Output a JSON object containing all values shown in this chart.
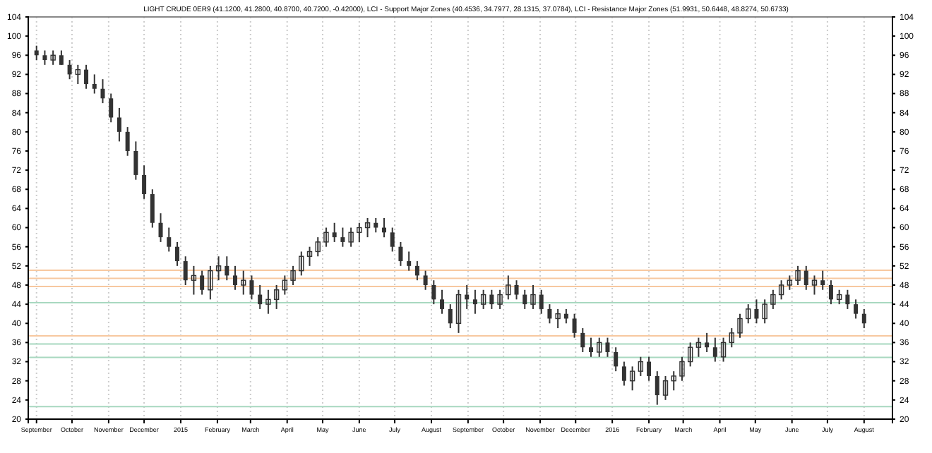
{
  "chart_data": {
    "type": "candlestick",
    "title": "LIGHT CRUDE 0ER9 (41.1200, 41.2800, 40.8700, 40.7200, -0.42000), LCI - Support Major Zones (40.4536, 34.7977, 28.1315, 37.0784), LCI - Resistance Major Zones (51.9931, 50.6448, 48.8274, 50.6733)",
    "color": "#333333",
    "x": [
      "2014-09-01",
      "2014-09-08",
      "2014-09-15",
      "2014-09-22",
      "2014-09-29",
      "2014-10-06",
      "2014-10-13",
      "2014-10-20",
      "2014-10-27",
      "2014-11-03",
      "2014-11-10",
      "2014-11-17",
      "2014-11-24",
      "2014-12-01",
      "2014-12-08",
      "2014-12-15",
      "2014-12-22",
      "2014-12-29",
      "2015-01-05",
      "2015-01-12",
      "2015-01-19",
      "2015-01-26",
      "2015-02-02",
      "2015-02-09",
      "2015-02-16",
      "2015-02-23",
      "2015-03-02",
      "2015-03-09",
      "2015-03-16",
      "2015-03-23",
      "2015-03-30",
      "2015-04-06",
      "2015-04-13",
      "2015-04-20",
      "2015-04-27",
      "2015-05-04",
      "2015-05-11",
      "2015-05-18",
      "2015-05-25",
      "2015-06-01",
      "2015-06-08",
      "2015-06-15",
      "2015-06-22",
      "2015-06-29",
      "2015-07-06",
      "2015-07-13",
      "2015-07-20",
      "2015-07-27",
      "2015-08-03",
      "2015-08-10",
      "2015-08-17",
      "2015-08-24",
      "2015-08-31",
      "2015-09-07",
      "2015-09-14",
      "2015-09-21",
      "2015-09-28",
      "2015-10-05",
      "2015-10-12",
      "2015-10-19",
      "2015-10-26",
      "2015-11-02",
      "2015-11-09",
      "2015-11-16",
      "2015-11-23",
      "2015-11-30",
      "2015-12-07",
      "2015-12-14",
      "2015-12-21",
      "2015-12-28",
      "2016-01-04",
      "2016-01-11",
      "2016-01-18",
      "2016-01-25",
      "2016-02-01",
      "2016-02-08",
      "2016-02-15",
      "2016-02-22",
      "2016-02-29",
      "2016-03-07",
      "2016-03-14",
      "2016-03-21",
      "2016-03-28",
      "2016-04-04",
      "2016-04-11",
      "2016-04-18",
      "2016-04-25",
      "2016-05-02",
      "2016-05-09",
      "2016-05-16",
      "2016-05-23",
      "2016-05-30",
      "2016-06-06",
      "2016-06-13",
      "2016-06-20",
      "2016-06-27",
      "2016-07-04",
      "2016-07-11",
      "2016-07-18",
      "2016-07-25",
      "2016-08-01"
    ],
    "ohlc": [
      [
        97,
        98,
        95,
        96
      ],
      [
        96,
        97,
        94,
        95
      ],
      [
        95,
        97,
        94,
        96
      ],
      [
        96,
        97,
        94,
        94
      ],
      [
        94,
        95,
        91,
        92
      ],
      [
        92,
        94,
        90,
        93
      ],
      [
        93,
        94,
        89,
        90
      ],
      [
        90,
        92,
        88,
        89
      ],
      [
        89,
        91,
        86,
        87
      ],
      [
        87,
        88,
        82,
        83
      ],
      [
        83,
        85,
        78,
        80
      ],
      [
        80,
        81,
        75,
        76
      ],
      [
        76,
        78,
        70,
        71
      ],
      [
        71,
        73,
        66,
        67
      ],
      [
        67,
        68,
        60,
        61
      ],
      [
        61,
        63,
        57,
        58
      ],
      [
        58,
        60,
        55,
        56
      ],
      [
        56,
        57,
        52,
        53
      ],
      [
        53,
        54,
        48,
        49
      ],
      [
        49,
        52,
        46,
        50
      ],
      [
        50,
        51,
        46,
        47
      ],
      [
        47,
        52,
        45,
        51
      ],
      [
        51,
        54,
        49,
        52
      ],
      [
        52,
        54,
        49,
        50
      ],
      [
        50,
        52,
        47,
        48
      ],
      [
        48,
        51,
        46,
        49
      ],
      [
        49,
        50,
        45,
        46
      ],
      [
        46,
        48,
        43,
        44
      ],
      [
        44,
        47,
        42,
        45
      ],
      [
        45,
        48,
        43,
        47
      ],
      [
        47,
        50,
        46,
        49
      ],
      [
        49,
        52,
        48,
        51
      ],
      [
        51,
        55,
        50,
        54
      ],
      [
        54,
        56,
        52,
        55
      ],
      [
        55,
        58,
        54,
        57
      ],
      [
        57,
        60,
        56,
        59
      ],
      [
        59,
        61,
        57,
        58
      ],
      [
        58,
        60,
        56,
        57
      ],
      [
        57,
        60,
        56,
        59
      ],
      [
        59,
        61,
        57,
        60
      ],
      [
        60,
        62,
        58,
        61
      ],
      [
        61,
        62,
        59,
        60
      ],
      [
        60,
        62,
        58,
        59
      ],
      [
        59,
        60,
        55,
        56
      ],
      [
        56,
        57,
        52,
        53
      ],
      [
        53,
        55,
        51,
        52
      ],
      [
        52,
        53,
        49,
        50
      ],
      [
        50,
        51,
        47,
        48
      ],
      [
        48,
        49,
        44,
        45
      ],
      [
        45,
        47,
        42,
        43
      ],
      [
        43,
        44,
        39,
        40
      ],
      [
        40,
        47,
        38,
        46
      ],
      [
        46,
        48,
        43,
        45
      ],
      [
        45,
        47,
        42,
        44
      ],
      [
        44,
        47,
        43,
        46
      ],
      [
        46,
        47,
        43,
        44
      ],
      [
        44,
        47,
        43,
        46
      ],
      [
        46,
        50,
        45,
        48
      ],
      [
        48,
        49,
        45,
        46
      ],
      [
        46,
        47,
        43,
        44
      ],
      [
        44,
        48,
        43,
        46
      ],
      [
        46,
        47,
        42,
        43
      ],
      [
        43,
        44,
        40,
        41
      ],
      [
        41,
        43,
        39,
        42
      ],
      [
        42,
        43,
        40,
        41
      ],
      [
        41,
        42,
        37,
        38
      ],
      [
        38,
        39,
        34,
        35
      ],
      [
        35,
        37,
        33,
        34
      ],
      [
        34,
        37,
        33,
        36
      ],
      [
        36,
        37,
        33,
        34
      ],
      [
        34,
        35,
        30,
        31
      ],
      [
        31,
        32,
        27,
        28
      ],
      [
        28,
        31,
        26,
        30
      ],
      [
        30,
        33,
        29,
        32
      ],
      [
        32,
        33,
        28,
        29
      ],
      [
        29,
        30,
        23,
        25
      ],
      [
        25,
        29,
        24,
        28
      ],
      [
        28,
        30,
        26,
        29
      ],
      [
        29,
        33,
        28,
        32
      ],
      [
        32,
        36,
        31,
        35
      ],
      [
        35,
        37,
        33,
        36
      ],
      [
        36,
        38,
        34,
        35
      ],
      [
        35,
        37,
        32,
        33
      ],
      [
        33,
        37,
        32,
        36
      ],
      [
        36,
        39,
        35,
        38
      ],
      [
        38,
        42,
        37,
        41
      ],
      [
        41,
        44,
        40,
        43
      ],
      [
        43,
        45,
        40,
        41
      ],
      [
        41,
        45,
        40,
        44
      ],
      [
        44,
        47,
        43,
        46
      ],
      [
        46,
        49,
        45,
        48
      ],
      [
        48,
        50,
        47,
        49
      ],
      [
        49,
        52,
        48,
        51
      ],
      [
        51,
        52,
        47,
        48
      ],
      [
        48,
        50,
        46,
        49
      ],
      [
        49,
        51,
        47,
        48
      ],
      [
        48,
        49,
        44,
        45
      ],
      [
        45,
        47,
        44,
        46
      ],
      [
        46,
        47,
        43,
        44
      ],
      [
        44,
        45,
        41,
        42
      ],
      [
        42,
        43,
        39,
        40
      ]
    ],
    "xlim": [
      "2014-08-25",
      "2016-08-25"
    ],
    "xticks": [
      {
        "value": "2014-09-01",
        "label": "September"
      },
      {
        "value": "2014-10-01",
        "label": "October"
      },
      {
        "value": "2014-11-01",
        "label": "November"
      },
      {
        "value": "2014-12-01",
        "label": "December"
      },
      {
        "value": "2015-01-01",
        "label": "2015"
      },
      {
        "value": "2015-02-01",
        "label": "February"
      },
      {
        "value": "2015-03-01",
        "label": "March"
      },
      {
        "value": "2015-04-01",
        "label": "April"
      },
      {
        "value": "2015-05-01",
        "label": "May"
      },
      {
        "value": "2015-06-01",
        "label": "June"
      },
      {
        "value": "2015-07-01",
        "label": "July"
      },
      {
        "value": "2015-08-01",
        "label": "August"
      },
      {
        "value": "2015-09-01",
        "label": "September"
      },
      {
        "value": "2015-10-01",
        "label": "October"
      },
      {
        "value": "2015-11-01",
        "label": "November"
      },
      {
        "value": "2015-12-01",
        "label": "December"
      },
      {
        "value": "2016-01-01",
        "label": "2016"
      },
      {
        "value": "2016-02-01",
        "label": "February"
      },
      {
        "value": "2016-03-01",
        "label": "March"
      },
      {
        "value": "2016-04-01",
        "label": "April"
      },
      {
        "value": "2016-05-01",
        "label": "May"
      },
      {
        "value": "2016-06-01",
        "label": "June"
      },
      {
        "value": "2016-07-01",
        "label": "July"
      },
      {
        "value": "2016-08-01",
        "label": "August"
      }
    ],
    "ylim": [
      20,
      104
    ],
    "yticks": [
      20,
      24,
      28,
      32,
      36,
      40,
      44,
      48,
      52,
      56,
      60,
      64,
      68,
      72,
      76,
      80,
      84,
      88,
      92,
      96,
      100,
      104
    ],
    "y2lim": [
      20,
      104
    ],
    "y2ticks": [
      20,
      24,
      28,
      32,
      36,
      40,
      44,
      48,
      52,
      56,
      60,
      64,
      68,
      72,
      76,
      80,
      84,
      88,
      92,
      96,
      100,
      104
    ],
    "grid": "x",
    "ref_lines": [
      {
        "axis": "y",
        "value": 51.1,
        "color": "#f7c8a0"
      },
      {
        "axis": "y",
        "value": 49.4,
        "color": "#f7c8a0"
      },
      {
        "axis": "y",
        "value": 47.7,
        "color": "#f7c8a0"
      },
      {
        "axis": "y",
        "value": 37.4,
        "color": "#f7c8a0"
      },
      {
        "axis": "y",
        "value": 44.3,
        "color": "#a8d8c0"
      },
      {
        "axis": "y",
        "value": 35.7,
        "color": "#a8d8c0"
      },
      {
        "axis": "y",
        "value": 32.9,
        "color": "#a8d8c0"
      },
      {
        "axis": "y",
        "value": 22.6,
        "color": "#a8d8c0"
      }
    ]
  }
}
